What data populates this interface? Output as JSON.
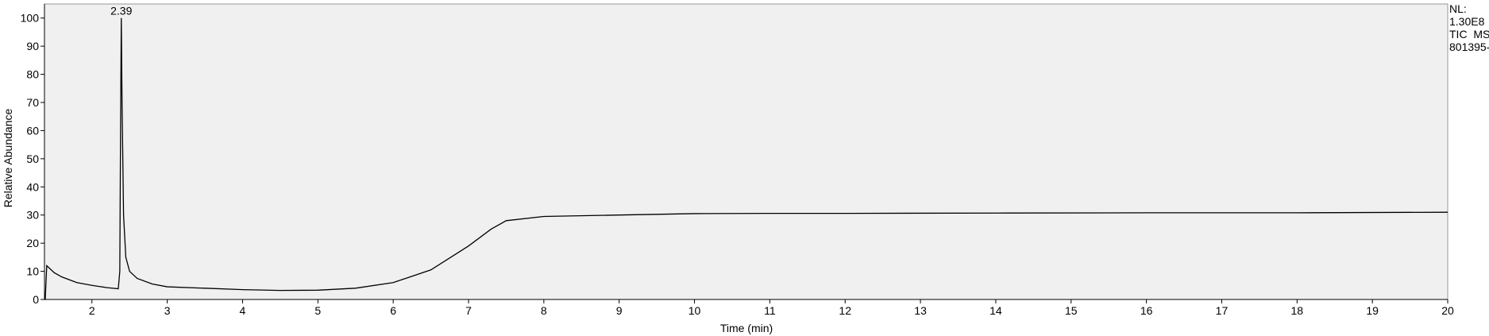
{
  "chart_data": {
    "type": "line",
    "xlabel": "Time (min)",
    "ylabel": "Relative Abundance",
    "x": [
      1.37,
      1.38,
      1.4,
      1.5,
      1.6,
      1.8,
      2.0,
      2.2,
      2.35,
      2.37,
      2.38,
      2.39,
      2.4,
      2.42,
      2.45,
      2.5,
      2.6,
      2.8,
      3.0,
      3.5,
      4.0,
      4.5,
      5.0,
      5.5,
      6.0,
      6.5,
      7.0,
      7.3,
      7.5,
      8.0,
      9.0,
      10,
      11,
      12,
      14,
      16,
      18,
      20
    ],
    "series": [
      {
        "color": "#000000",
        "values": [
          0,
          0,
          12,
          9.5,
          8,
          6,
          5,
          4.2,
          3.8,
          10,
          60,
          100,
          70,
          30,
          15,
          10,
          7.5,
          5.5,
          4.5,
          4,
          3.5,
          3.2,
          3.3,
          4,
          6,
          10.5,
          19,
          25,
          28,
          29.5,
          30,
          30.5,
          30.6,
          30.6,
          30.7,
          30.8,
          30.8,
          31
        ]
      }
    ],
    "annotations": [
      {
        "text": "2.39",
        "x": 2.39,
        "y": 100
      }
    ],
    "side_labels": [
      "NL:",
      "1.30E8",
      "TIC  MS",
      "801395-"
    ],
    "xlim": [
      1.37,
      20
    ],
    "ylim": [
      0,
      105
    ],
    "xticks": [
      2,
      3,
      4,
      5,
      6,
      7,
      8,
      9,
      10,
      11,
      12,
      13,
      14,
      15,
      16,
      17,
      18,
      19,
      20
    ],
    "yticks": [
      0,
      10,
      20,
      30,
      40,
      50,
      60,
      70,
      80,
      90,
      100
    ]
  }
}
